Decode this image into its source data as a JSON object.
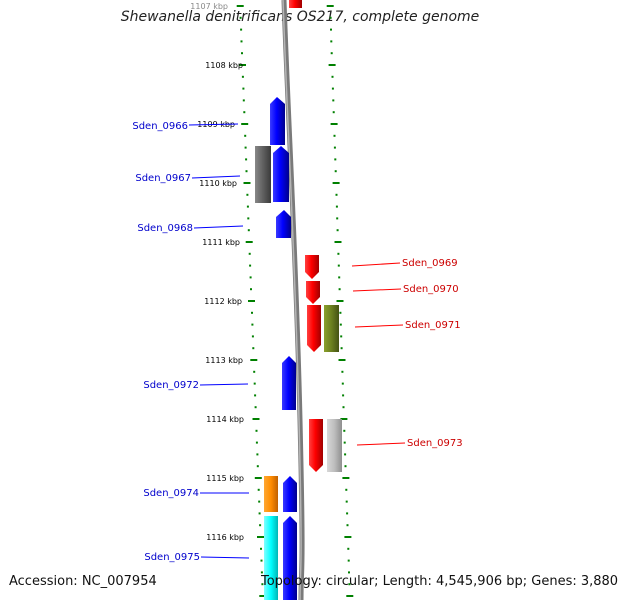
{
  "title": "Shewanella denitrificans OS217, complete genome",
  "accession_text": "Accession: NC_007954",
  "topology_text": "Topology: circular; Length: 4,545,906 bp; Genes: 3,880",
  "kbp_labels": [
    "1107 kbp",
    "1108 kbp",
    "1109 kbp",
    "1110 kbp",
    "1111 kbp",
    "1112 kbp",
    "1113 kbp",
    "1114 kbp",
    "1115 kbp",
    "1116 kbp"
  ],
  "genes_left": [
    "Sden_0966",
    "Sden_0967",
    "Sden_0968",
    "Sden_0972",
    "Sden_0974",
    "Sden_0975"
  ],
  "genes_right": [
    "Sden_0969",
    "Sden_0970",
    "Sden_0971",
    "Sden_0973"
  ],
  "colors": {
    "forward_strand": "#0000ff",
    "reverse_strand": "#ff0000",
    "tick_marks": "#008000",
    "backbone": "#888888",
    "gray_feature": "#606060",
    "olive_feature": "#6b7f1f",
    "light_gray_feature": "#bdbdbd",
    "orange_feature": "#ff8c00",
    "cyan_feature": "#00ffff"
  }
}
